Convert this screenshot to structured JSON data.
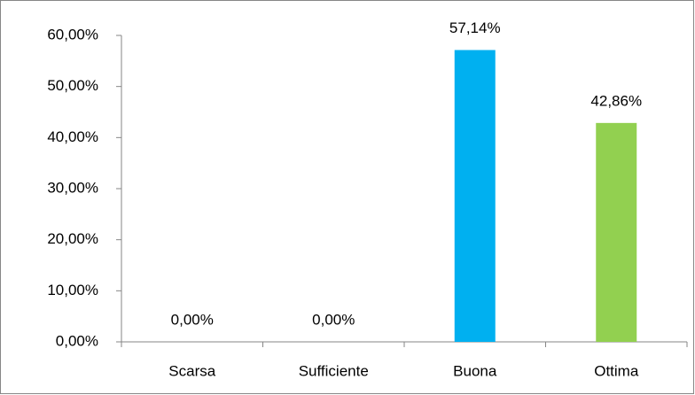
{
  "chart_data": {
    "type": "bar",
    "categories": [
      "Scarsa",
      "Sufficiente",
      "Buona",
      "Ottima"
    ],
    "values": [
      0,
      0,
      57.14,
      42.86
    ],
    "value_labels": [
      "0,00%",
      "0,00%",
      "57,14%",
      "42,86%"
    ],
    "colors": [
      "#00b0f0",
      "#00b0f0",
      "#00b0f0",
      "#92d050"
    ],
    "ylim": [
      0,
      60
    ],
    "yticks": [
      {
        "value": 0,
        "label": "0,00%"
      },
      {
        "value": 10,
        "label": "10,00%"
      },
      {
        "value": 20,
        "label": "20,00%"
      },
      {
        "value": 30,
        "label": "30,00%"
      },
      {
        "value": 40,
        "label": "40,00%"
      },
      {
        "value": 50,
        "label": "50,00%"
      },
      {
        "value": 60,
        "label": "60,00%"
      }
    ],
    "grid": false
  }
}
